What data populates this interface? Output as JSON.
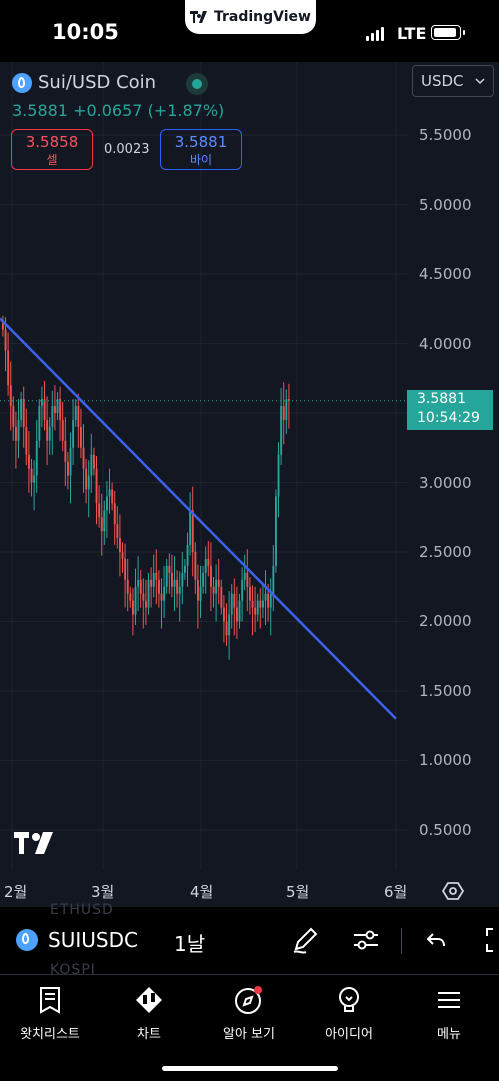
{
  "status": {
    "time": "10:05",
    "network": "LTE",
    "brand": "TradingView"
  },
  "symbol": {
    "name": "Sui/USD Coin",
    "price": "3.5881",
    "change": "+0.0657",
    "change_pct": "(+1.87%)",
    "sell_price": "3.5858",
    "sell_label": "셀",
    "spread": "0.0023",
    "buy_price": "3.5881",
    "buy_label": "바이",
    "currency": "USDC"
  },
  "axis": {
    "y_ticks": [
      "5.5000",
      "5.0000",
      "4.5000",
      "4.0000",
      "3.0000",
      "2.5000",
      "2.0000",
      "1.5000",
      "1.0000",
      "0.5000"
    ],
    "x_ticks": [
      "2월",
      "3월",
      "4월",
      "5월",
      "6월"
    ],
    "last_price": "3.5881",
    "countdown": "10:54:29"
  },
  "chart_data": {
    "type": "candlestick",
    "y_range": [
      0.2,
      5.9
    ],
    "last_price": 3.5881,
    "x_months": [
      "2월",
      "3월",
      "4월",
      "5월",
      "6월"
    ],
    "closes": [
      4.1,
      3.95,
      3.7,
      3.55,
      3.4,
      3.3,
      3.45,
      3.6,
      3.4,
      3.2,
      3.1,
      3.0,
      3.05,
      3.3,
      3.55,
      3.6,
      3.45,
      3.3,
      3.4,
      3.55,
      3.5,
      3.6,
      3.45,
      3.3,
      3.15,
      3.05,
      3.25,
      3.45,
      3.55,
      3.4,
      3.25,
      3.1,
      2.95,
      3.05,
      3.2,
      3.1,
      2.85,
      2.75,
      2.65,
      2.8,
      2.9,
      2.95,
      2.85,
      2.7,
      2.6,
      2.5,
      2.45,
      2.3,
      2.2,
      2.15,
      2.05,
      2.25,
      2.3,
      2.2,
      2.15,
      2.1,
      2.3,
      2.25,
      2.35,
      2.3,
      2.2,
      2.15,
      2.25,
      2.4,
      2.35,
      2.25,
      2.3,
      2.2,
      2.25,
      2.35,
      2.4,
      2.55,
      2.8,
      2.5,
      2.3,
      2.15,
      2.25,
      2.35,
      2.45,
      2.4,
      2.25,
      2.2,
      2.3,
      2.25,
      2.1,
      2.0,
      1.9,
      2.05,
      2.2,
      2.1,
      2.0,
      2.15,
      2.3,
      2.35,
      2.25,
      2.15,
      2.1,
      2.05,
      2.15,
      2.1,
      2.15,
      2.2,
      2.1,
      2.2,
      2.4,
      2.9,
      3.2,
      3.55,
      3.45,
      3.6,
      3.5881
    ],
    "trendline": {
      "start": {
        "month": "1월 말",
        "price": 4.18
      },
      "end": {
        "month": "6월",
        "price": 1.3
      }
    }
  },
  "toolbar": {
    "symbol": "SUIUSDC",
    "interval": "1날",
    "ghost_above": "ETHUSD",
    "ghost_below": "KOSPI"
  },
  "tabs": [
    {
      "label": "왓치리스트",
      "icon": "watchlist-icon"
    },
    {
      "label": "차트",
      "icon": "chart-icon"
    },
    {
      "label": "알아 보기",
      "icon": "explore-icon"
    },
    {
      "label": "아이디어",
      "icon": "ideas-icon"
    },
    {
      "label": "메뉴",
      "icon": "menu-icon"
    }
  ],
  "colors": {
    "up": "#26a69a",
    "down": "#ef5350",
    "trendline": "#3c63f0",
    "bg": "#131722"
  }
}
